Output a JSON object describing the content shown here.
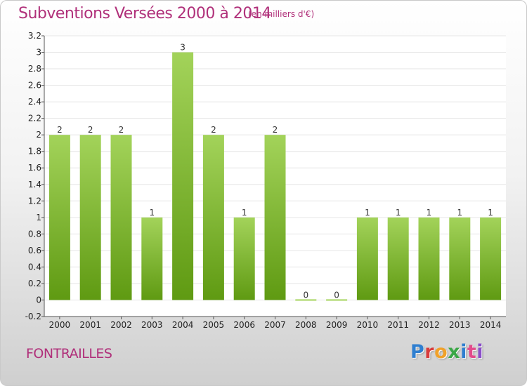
{
  "header": {
    "title": "Subventions Versées 2000 à 2014",
    "subtitle": "(en milliers d'€)"
  },
  "footer": {
    "place": "FONTRAILLES",
    "logo": [
      "P",
      "r",
      "o",
      "x",
      "i",
      "t",
      "i"
    ]
  },
  "colors": {
    "title": "#b0307a",
    "bar_top": "#a3d35a",
    "bar_bottom": "#5f9a12",
    "grid": "#e6e6e6"
  },
  "chart_data": {
    "type": "bar",
    "title": "Subventions Versées 2000 à 2014",
    "subtitle": "(en milliers d'€)",
    "categories": [
      "2000",
      "2001",
      "2002",
      "2003",
      "2004",
      "2005",
      "2006",
      "2007",
      "2008",
      "2009",
      "2010",
      "2011",
      "2012",
      "2013",
      "2014"
    ],
    "values": [
      2,
      2,
      2,
      1,
      3,
      2,
      1,
      2,
      0,
      0,
      1,
      1,
      1,
      1,
      1
    ],
    "data_labels": [
      "2",
      "2",
      "2",
      "1",
      "3",
      "2",
      "1",
      "2",
      "0",
      "0",
      "1",
      "1",
      "1",
      "1",
      "1"
    ],
    "ylim": [
      -0.2,
      3.2
    ],
    "yticks": [
      -0.2,
      0,
      0.2,
      0.4,
      0.6,
      0.8,
      1,
      1.2,
      1.4,
      1.6,
      1.8,
      2,
      2.2,
      2.4,
      2.6,
      2.8,
      3,
      3.2
    ],
    "ytick_labels": [
      "-0.2",
      "0",
      "0.2",
      "0.4",
      "0.6",
      "0.8",
      "1",
      "1.2",
      "1.4",
      "1.6",
      "1.8",
      "2",
      "2.2",
      "2.4",
      "2.6",
      "2.8",
      "3",
      "3.2"
    ],
    "xlabel": "",
    "ylabel": "",
    "grid": true
  }
}
